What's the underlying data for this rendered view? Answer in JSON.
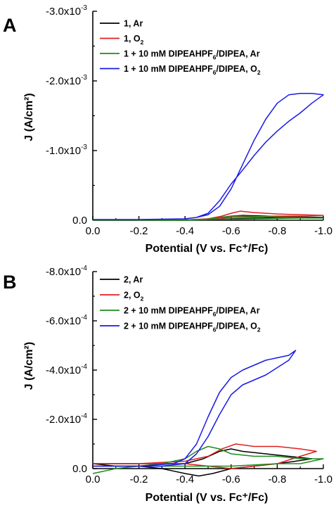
{
  "chart_data": [
    {
      "panel": "A",
      "type": "line",
      "xlabel": "Potential (V vs. Fc⁺/Fc)",
      "ylabel": "J (A/cm²)",
      "xlim": [
        0.0,
        -1.0
      ],
      "ylim": [
        0.0,
        -0.003
      ],
      "x_ticks": [
        0.0,
        -0.2,
        -0.4,
        -0.6,
        -0.8,
        -1.0
      ],
      "x_tick_labels": [
        "0.0",
        "-0.2",
        "-0.4",
        "-0.6",
        "-0.8",
        "-1.0"
      ],
      "y_ticks": [
        0.0,
        -0.001,
        -0.002,
        -0.003
      ],
      "y_tick_labels": [
        {
          "mantissa": "0.0",
          "exp": ""
        },
        {
          "mantissa": "-1.0x10",
          "exp": "-3"
        },
        {
          "mantissa": "-2.0x10",
          "exp": "-3"
        },
        {
          "mantissa": "-3.0x10",
          "exp": "-3"
        }
      ],
      "legend_position": "top-left",
      "series": [
        {
          "name": "1, Ar",
          "legend_base": "1, Ar",
          "legend_sub": "",
          "legend_tail": "",
          "color": "#000000",
          "x": [
            0.0,
            -0.2,
            -0.4,
            -0.5,
            -0.56,
            -0.6,
            -0.65,
            -0.75,
            -0.85,
            -1.0,
            -0.9,
            -0.8,
            -0.7,
            -0.6,
            -0.5,
            -0.4,
            -0.2,
            0.0
          ],
          "y": [
            0.0,
            0.0,
            -5e-06,
            -1.5e-05,
            -4e-05,
            -6e-05,
            -7e-05,
            -6e-05,
            -5e-05,
            -4e-05,
            -4e-05,
            -3.5e-05,
            -3e-05,
            -2e-05,
            -1e-05,
            0.0,
            0.0,
            0.0
          ]
        },
        {
          "name": "1, O2",
          "legend_base": "1, O",
          "legend_sub": "2",
          "legend_tail": "",
          "color": "#e02020",
          "x": [
            0.0,
            -0.2,
            -0.4,
            -0.5,
            -0.56,
            -0.6,
            -0.64,
            -0.7,
            -0.8,
            -1.0,
            -0.9,
            -0.8,
            -0.7,
            -0.6,
            -0.5,
            -0.4,
            -0.2,
            0.0
          ],
          "y": [
            0.0,
            0.0,
            -5e-06,
            -2e-05,
            -6e-05,
            -0.0001,
            -0.00013,
            -0.00011,
            -9e-05,
            -7e-05,
            -6e-05,
            -6e-05,
            -5e-05,
            -4e-05,
            -2e-05,
            -5e-06,
            0.0,
            0.0
          ]
        },
        {
          "name": "1 + 10 mM DIPEAHPF6/DIPEA, Ar",
          "legend_base": "1 + 10 mM DIPEAHPF",
          "legend_sub": "6",
          "legend_tail": "/DIPEA, Ar",
          "color": "#1e8c1e",
          "x": [
            0.0,
            -0.2,
            -0.4,
            -0.5,
            -0.55,
            -0.6,
            -0.65,
            -0.75,
            -0.85,
            -1.0,
            -0.9,
            -0.8,
            -0.7,
            -0.6,
            -0.5,
            -0.4,
            -0.2,
            0.0
          ],
          "y": [
            0.0,
            0.0,
            -5e-06,
            -1.5e-05,
            -4e-05,
            -6e-05,
            -6e-05,
            -5e-05,
            -4e-05,
            -3e-05,
            -3e-05,
            -2.5e-05,
            -2e-05,
            -1.5e-05,
            -1e-05,
            0.0,
            0.0,
            0.0
          ]
        },
        {
          "name": "1 + 10 mM DIPEAHPF6/DIPEA, O2",
          "legend_base": "1 + 10 mM DIPEAHPF",
          "legend_sub": "6",
          "legend_tail": "/DIPEA, O",
          "legend_sub2": "2",
          "color": "#1a1ae6",
          "x": [
            0.0,
            -0.2,
            -0.4,
            -0.45,
            -0.5,
            -0.55,
            -0.6,
            -0.65,
            -0.7,
            -0.75,
            -0.8,
            -0.85,
            -0.9,
            -0.95,
            -1.0,
            -0.95,
            -0.9,
            -0.85,
            -0.8,
            -0.75,
            -0.7,
            -0.65,
            -0.6,
            -0.55,
            -0.5,
            -0.45,
            -0.4,
            -0.2,
            0.0
          ],
          "y": [
            -1e-05,
            -1e-05,
            -2e-05,
            -4e-05,
            -8e-05,
            -0.0002,
            -0.00045,
            -0.0008,
            -0.00115,
            -0.00145,
            -0.00168,
            -0.0018,
            -0.00182,
            -0.00182,
            -0.0018,
            -0.00168,
            -0.00154,
            -0.00142,
            -0.00128,
            -0.00112,
            -0.00093,
            -0.00072,
            -0.00052,
            -0.00028,
            -0.0001,
            -4e-05,
            -2e-05,
            -1e-05,
            -1e-05
          ]
        }
      ]
    },
    {
      "panel": "B",
      "type": "line",
      "xlabel": "Potential (V vs. Fc⁺/Fc)",
      "ylabel": "J (A/cm²)",
      "xlim": [
        0.0,
        -1.0
      ],
      "ylim": [
        0.0,
        -0.0008
      ],
      "x_ticks": [
        0.0,
        -0.2,
        -0.4,
        -0.6,
        -0.8,
        -1.0
      ],
      "x_tick_labels": [
        "0.0",
        "-0.2",
        "-0.4",
        "-0.6",
        "-0.8",
        "-1.0"
      ],
      "y_ticks": [
        0.0,
        -0.0002,
        -0.0004,
        -0.0006,
        -0.0008
      ],
      "y_tick_labels": [
        {
          "mantissa": "0.0",
          "exp": ""
        },
        {
          "mantissa": "-2.0x10",
          "exp": "-4"
        },
        {
          "mantissa": "-4.0x10",
          "exp": "-4"
        },
        {
          "mantissa": "-6.0x10",
          "exp": "-4"
        },
        {
          "mantissa": "-8.0x10",
          "exp": "-4"
        }
      ],
      "legend_position": "top-left",
      "series": [
        {
          "name": "2, Ar",
          "legend_base": "2, Ar",
          "legend_sub": "",
          "legend_tail": "",
          "color": "#000000",
          "x": [
            0.0,
            -0.2,
            -0.4,
            -0.48,
            -0.55,
            -0.6,
            -0.65,
            -0.75,
            -0.85,
            -0.95,
            -0.88,
            -0.8,
            -0.7,
            -0.6,
            -0.52,
            -0.46,
            -0.4,
            -0.3,
            -0.2,
            -0.1,
            0.0
          ],
          "y": [
            -2e-05,
            -2e-05,
            -2e-05,
            -4e-05,
            -7e-05,
            -8e-05,
            -7e-05,
            -6e-05,
            -5e-05,
            -4e-05,
            -3e-05,
            -2e-05,
            -1e-05,
            0.0,
            2e-05,
            3e-05,
            2e-05,
            0.0,
            -1e-05,
            -1e-05,
            -2e-05
          ]
        },
        {
          "name": "2, O2",
          "legend_base": "2, O",
          "legend_sub": "2",
          "legend_tail": "",
          "color": "#e02020",
          "x": [
            0.0,
            -0.2,
            -0.4,
            -0.5,
            -0.56,
            -0.62,
            -0.7,
            -0.8,
            -0.9,
            -0.97,
            -0.9,
            -0.8,
            -0.7,
            -0.6,
            -0.5,
            -0.4,
            -0.2,
            0.0
          ],
          "y": [
            -2e-05,
            -2e-05,
            -3e-05,
            -5e-05,
            -8e-05,
            -0.0001,
            -9e-05,
            -9e-05,
            -8e-05,
            -7e-05,
            -5e-05,
            -2e-05,
            -1e-05,
            0.0,
            -1e-05,
            -2e-05,
            -2e-05,
            -2e-05
          ]
        },
        {
          "name": "2 + 10 mM DIPEAHPF6/DIPEA, Ar",
          "legend_base": "2 + 10 mM DIPEAHPF",
          "legend_sub": "6",
          "legend_tail": "/DIPEA, Ar",
          "color": "#1e8c1e",
          "x": [
            0.0,
            -0.1,
            -0.2,
            -0.3,
            -0.4,
            -0.45,
            -0.5,
            -0.55,
            -0.6,
            -0.7,
            -0.8,
            -0.9,
            -1.0,
            -0.9,
            -0.8,
            -0.6,
            -0.4,
            -0.2,
            0.0
          ],
          "y": [
            2e-05,
            0.0,
            -1e-05,
            -2e-05,
            -4e-05,
            -7e-05,
            -9e-05,
            -8e-05,
            -6e-05,
            -5e-05,
            -5e-05,
            -4e-05,
            -4e-05,
            -2e-05,
            -2e-05,
            -1e-05,
            -1e-05,
            -1e-05,
            -1e-05
          ]
        },
        {
          "name": "2 + 10 mM DIPEAHPF6/DIPEA, O2",
          "legend_base": "2 + 10 mM DIPEAHPF",
          "legend_sub": "6",
          "legend_tail": "/DIPEA, O",
          "legend_sub2": "2",
          "color": "#1a1ae6",
          "x": [
            0.0,
            -0.2,
            -0.35,
            -0.4,
            -0.45,
            -0.5,
            -0.55,
            -0.6,
            -0.65,
            -0.7,
            -0.75,
            -0.8,
            -0.85,
            -0.88,
            -0.85,
            -0.8,
            -0.75,
            -0.7,
            -0.65,
            -0.6,
            -0.55,
            -0.5,
            -0.45,
            -0.4,
            -0.3,
            -0.2,
            0.0
          ],
          "y": [
            -1e-05,
            -1e-05,
            -2e-05,
            -4e-05,
            -0.0001,
            -0.00021,
            -0.00031,
            -0.00037,
            -0.0004,
            -0.00042,
            -0.00044,
            -0.00045,
            -0.00046,
            -0.00048,
            -0.00044,
            -0.00041,
            -0.00038,
            -0.00036,
            -0.00034,
            -0.0003,
            -0.00022,
            -0.00013,
            -6e-05,
            -2e-05,
            -1e-05,
            -1e-05,
            -1e-05
          ]
        }
      ]
    }
  ]
}
